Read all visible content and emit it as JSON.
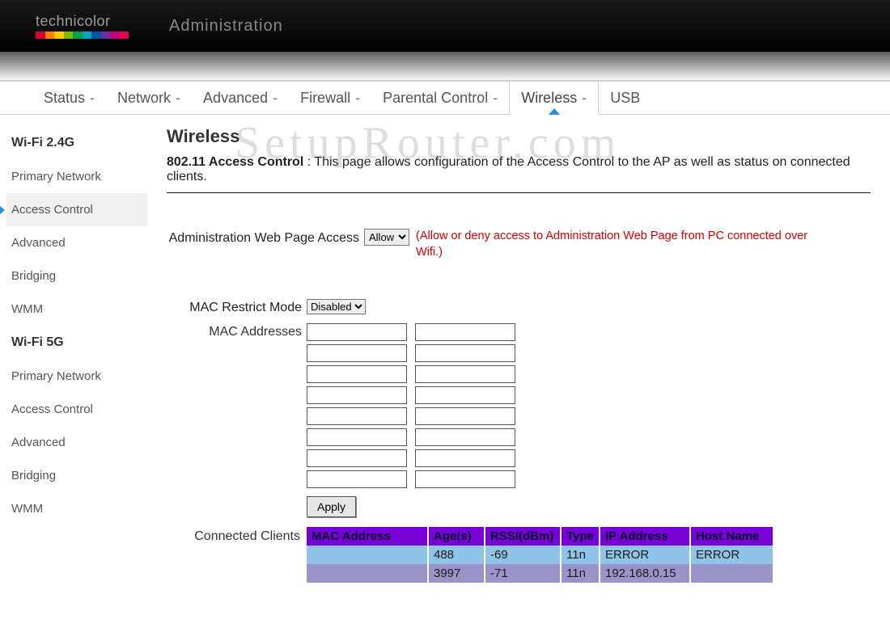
{
  "brand": {
    "name": "technicolor",
    "stripe_colors": [
      "#d50032",
      "#ff8300",
      "#ffcd00",
      "#7bb800",
      "#00a051",
      "#00a7c4",
      "#0054a6",
      "#6b2fa0",
      "#c40078",
      "#e5004f"
    ]
  },
  "header": {
    "title": "Administration"
  },
  "main_nav": [
    {
      "label": "Status",
      "has_menu": true,
      "active": false
    },
    {
      "label": "Network",
      "has_menu": true,
      "active": false
    },
    {
      "label": "Advanced",
      "has_menu": true,
      "active": false
    },
    {
      "label": "Firewall",
      "has_menu": true,
      "active": false
    },
    {
      "label": "Parental Control",
      "has_menu": true,
      "active": false
    },
    {
      "label": "Wireless",
      "has_menu": true,
      "active": true
    },
    {
      "label": "USB",
      "has_menu": false,
      "active": false
    }
  ],
  "sidebar": {
    "sections": [
      {
        "head": "Wi-Fi 2.4G",
        "items": [
          {
            "label": "Primary Network",
            "active": false
          },
          {
            "label": "Access Control",
            "active": true
          },
          {
            "label": "Advanced",
            "active": false
          },
          {
            "label": "Bridging",
            "active": false
          },
          {
            "label": "WMM",
            "active": false
          }
        ]
      },
      {
        "head": "Wi-Fi 5G",
        "items": [
          {
            "label": "Primary Network",
            "active": false
          },
          {
            "label": "Access Control",
            "active": false
          },
          {
            "label": "Advanced",
            "active": false
          },
          {
            "label": "Bridging",
            "active": false
          },
          {
            "label": "WMM",
            "active": false
          }
        ]
      }
    ]
  },
  "page": {
    "title": "Wireless",
    "intro_bold": "802.11 Access Control",
    "intro_sep": "  :  ",
    "intro_text": "This page allows configuration of the Access Control to the AP as well as status on connected clients.",
    "admin_label": "Administration Web Page Access",
    "admin_select_value": "Allow",
    "admin_hint": "(Allow or deny access to Administration Web Page from PC connected over Wifi.)",
    "restrict_label": "MAC Restrict Mode",
    "restrict_value": "Disabled",
    "mac_label": "MAC Addresses",
    "apply_label": "Apply",
    "clients_label": "Connected Clients",
    "clients": {
      "columns": [
        "MAC Address",
        "Age(s)",
        "RSSI(dBm)",
        "Type",
        "IP Address",
        "Host Name"
      ],
      "col_widths": [
        "150px",
        "70px",
        "94px",
        "48px",
        "112px",
        "102px"
      ],
      "header_bg": "#7a00d8",
      "header_fg": "#05052e",
      "row_colors": [
        "#8fc4e8",
        "#9a94c9"
      ],
      "rows": [
        {
          "mac": "",
          "age": "488",
          "rssi": "-69",
          "type": "11n",
          "ip": "ERROR",
          "host": "ERROR"
        },
        {
          "mac": "",
          "age": "3997",
          "rssi": "-71",
          "type": "11n",
          "ip": "192.168.0.15",
          "host": ""
        }
      ]
    }
  },
  "watermark": "SetupRouter.com"
}
